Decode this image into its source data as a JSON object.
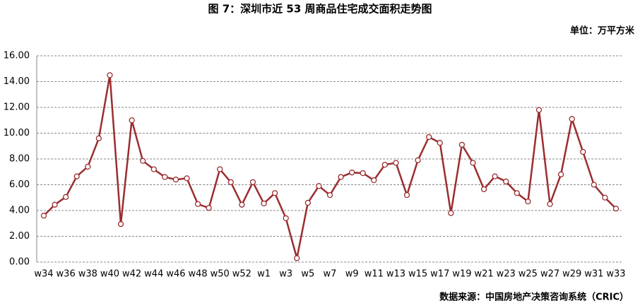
{
  "chart_data": {
    "type": "line",
    "title": "图 7：深圳市近 53 周商品住宅成交面积走势图",
    "unit": "单位：万平方米",
    "source": "数据来源：中国房地产决策咨询系统（CRIC）",
    "categories": [
      "w34",
      null,
      "w36",
      null,
      "w38",
      null,
      "w40",
      null,
      "w42",
      null,
      "w44",
      null,
      "w46",
      null,
      "w48",
      null,
      "w50",
      null,
      "w52",
      null,
      "w1",
      null,
      "w3",
      null,
      "w5",
      null,
      "w7",
      null,
      "w9",
      null,
      "w11",
      null,
      "w13",
      null,
      "w15",
      null,
      "w17",
      null,
      "w19",
      null,
      "w21",
      null,
      "w23",
      null,
      "w25",
      null,
      "w27",
      null,
      "w29",
      null,
      "w31",
      null,
      "w33"
    ],
    "series": [
      {
        "color": "#9b2d30",
        "values": [
          3.6,
          4.45,
          5.05,
          6.65,
          7.4,
          9.6,
          14.5,
          2.95,
          11.0,
          7.85,
          7.2,
          6.6,
          6.4,
          6.5,
          4.5,
          4.2,
          7.2,
          6.2,
          4.45,
          6.2,
          4.55,
          5.35,
          3.4,
          0.3,
          4.6,
          5.9,
          5.2,
          6.6,
          6.95,
          6.9,
          6.35,
          7.55,
          7.7,
          5.2,
          7.9,
          9.7,
          9.25,
          3.8,
          9.1,
          7.7,
          5.65,
          6.65,
          6.25,
          5.35,
          4.7,
          11.8,
          4.5,
          6.8,
          11.1,
          8.55,
          6.0,
          5.0,
          4.15
        ]
      }
    ],
    "ylim": [
      0,
      16
    ],
    "yticks": [
      {
        "value": 0,
        "label": "0.00"
      },
      {
        "value": 2,
        "label": "2.00"
      },
      {
        "value": 4,
        "label": "4.00"
      },
      {
        "value": 6,
        "label": "6.00"
      },
      {
        "value": 8,
        "label": "8.00"
      },
      {
        "value": 10,
        "label": "10.00"
      },
      {
        "value": 12,
        "label": "12.00"
      },
      {
        "value": 14,
        "label": "14.00"
      },
      {
        "value": 16,
        "label": "16.00"
      }
    ],
    "grid": true
  }
}
